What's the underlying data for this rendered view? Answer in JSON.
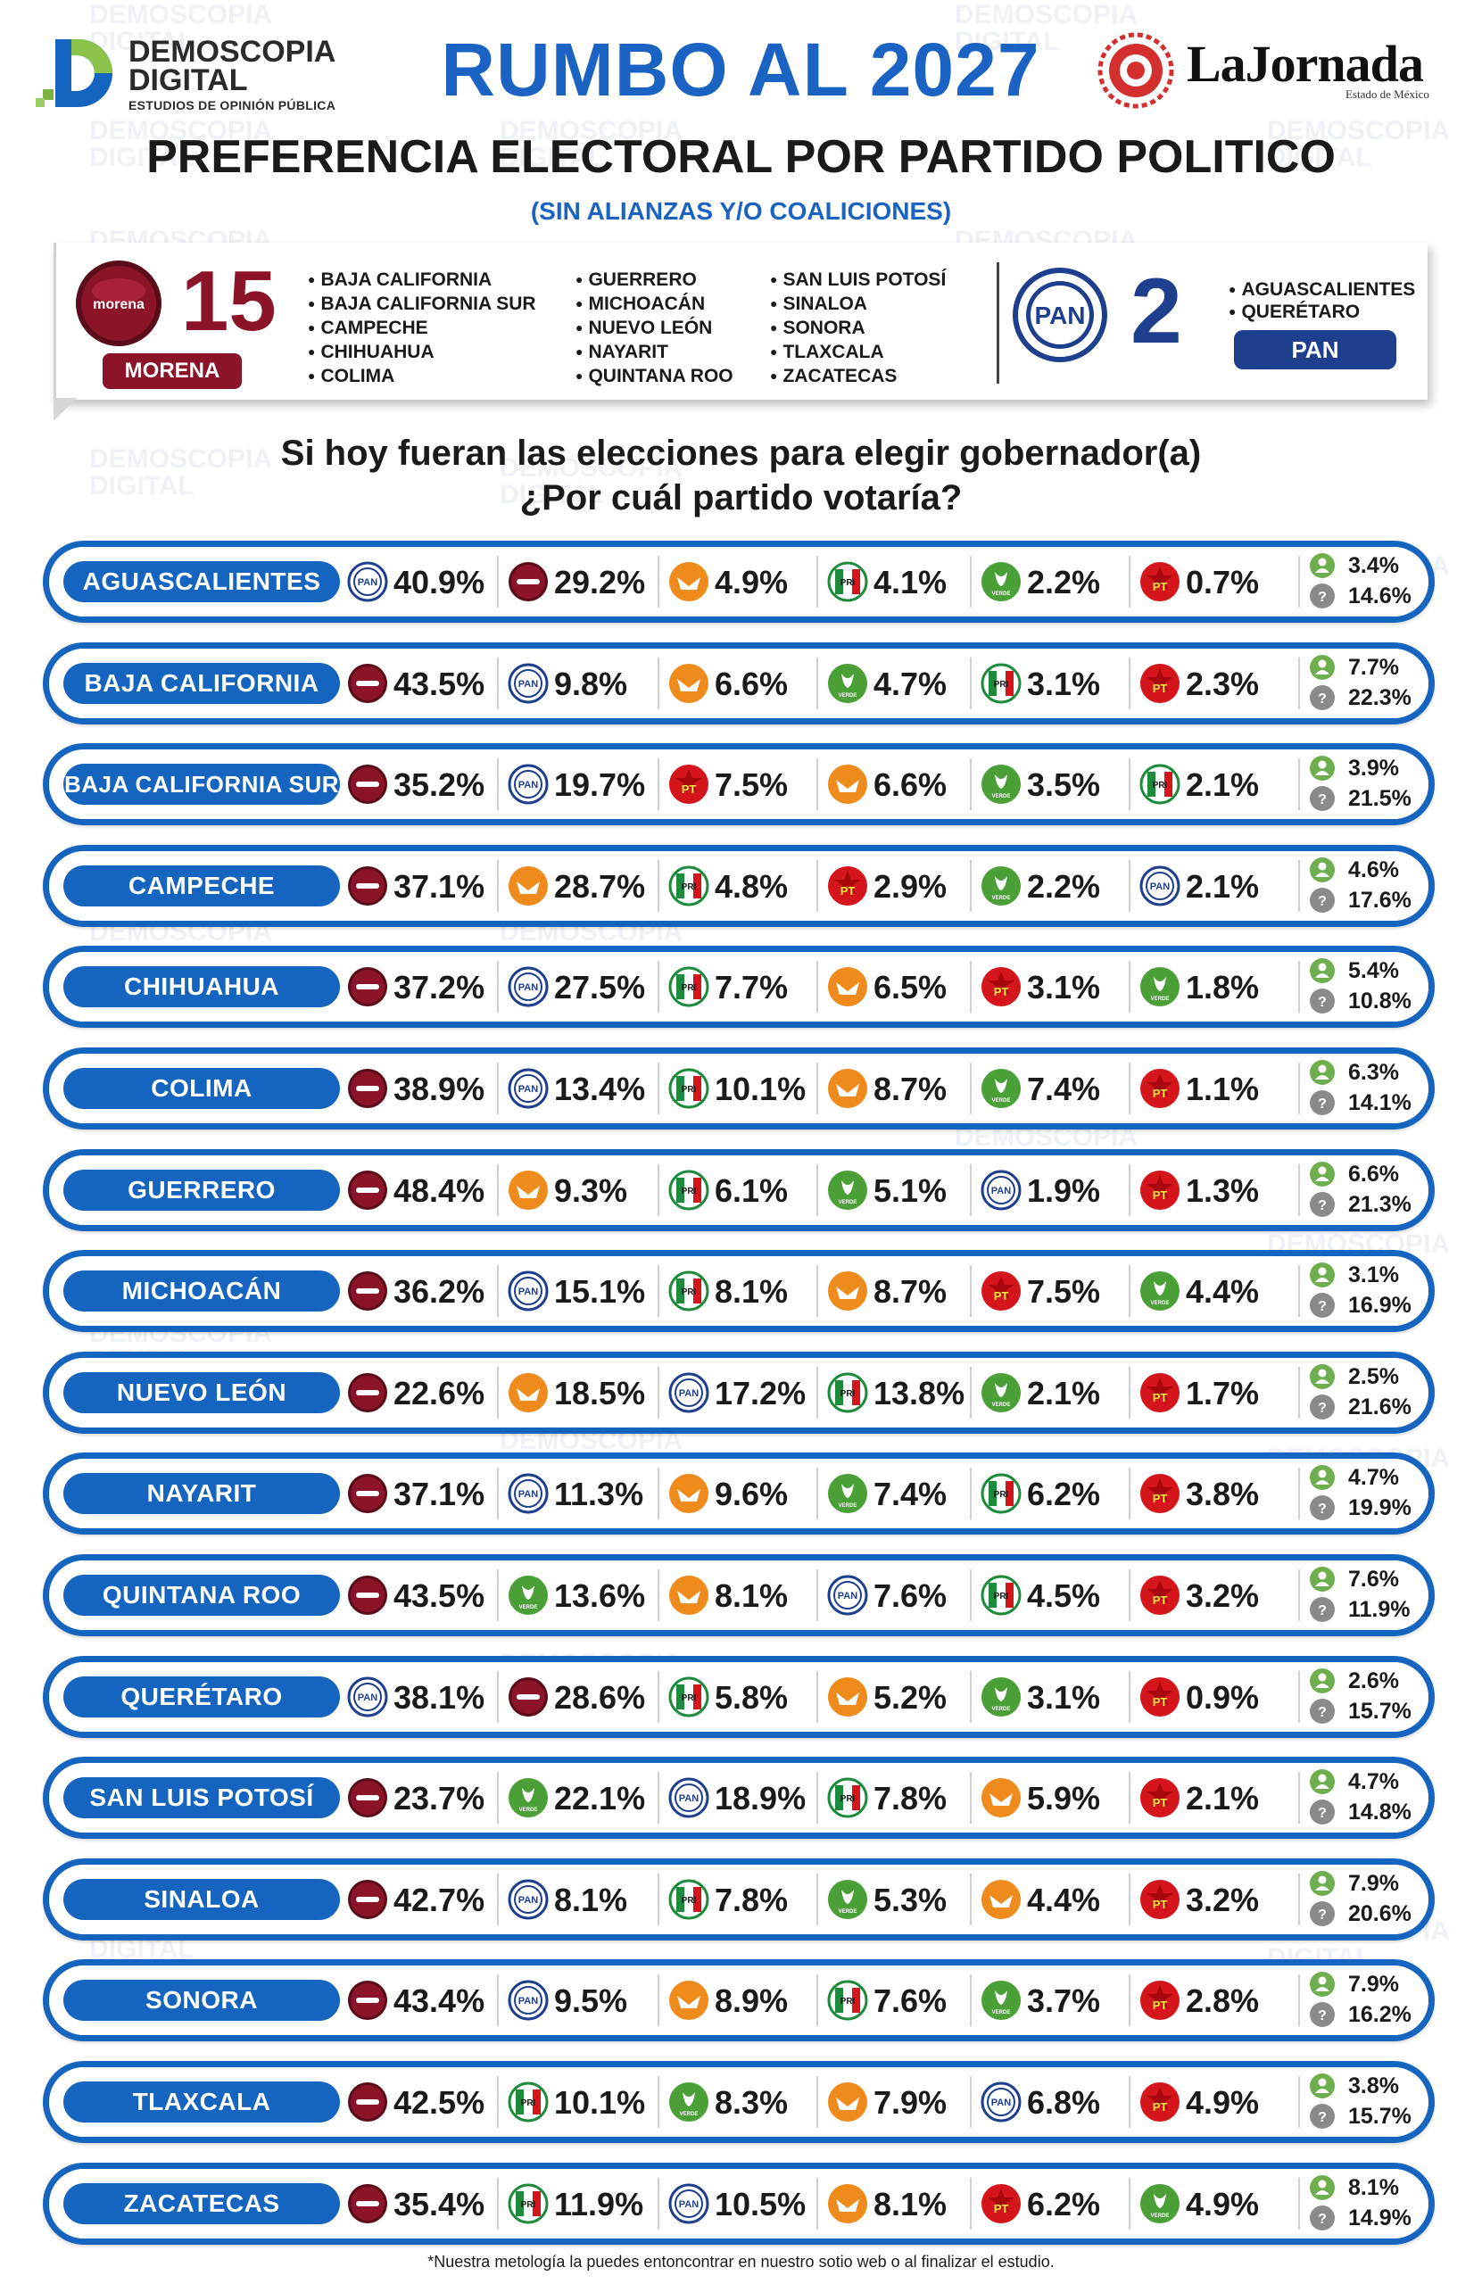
{
  "header": {
    "brand_line1": "DEMOSCOPIA",
    "brand_line2": "DIGITAL",
    "brand_tagline": "ESTUDIOS DE OPINIÓN PÚBLICA",
    "title": "RUMBO AL 2027",
    "partner": "LaJornada",
    "partner_sub": "Estado de México",
    "subtitle": "PREFERENCIA ELECTORAL POR PARTIDO POLITICO",
    "subtitle2": "(SIN ALIANZAS Y/O COALICIONES)"
  },
  "watermark": {
    "line1": "DEMOSCOPIA",
    "line2": "DIGITAL"
  },
  "summary": {
    "morena": {
      "logo_text": "morena",
      "count": "15",
      "label": "MORENA",
      "states_col1": [
        "BAJA CALIFORNIA",
        "BAJA CALIFORNIA SUR",
        "CAMPECHE",
        "CHIHUAHUA",
        "COLIMA"
      ],
      "states_col2": [
        "GUERRERO",
        "MICHOACÁN",
        "NUEVO LEÓN",
        "NAYARIT",
        "QUINTANA ROO"
      ],
      "states_col3": [
        "SAN LUIS POTOSÍ",
        "SINALOA",
        "SONORA",
        "TLAXCALA",
        "ZACATECAS"
      ]
    },
    "pan": {
      "logo_text": "PAN",
      "count": "2",
      "label": "PAN",
      "states": [
        "AGUASCALIENTES",
        "QUERÉTARO"
      ]
    }
  },
  "question": {
    "line1": "Si hoy fueran las elecciones para elegir gobernador(a)",
    "line2": "¿Por cuál partido votaría?"
  },
  "party_colors": {
    "morena": "#8b1428",
    "pan": "#1e3f8e",
    "mc": "#ef8a1c",
    "pri": "#1e8a3c",
    "pvem": "#4aa036",
    "pt": "#d4151c",
    "otro": "#6fae4e",
    "ns": "#8a8a8a",
    "row_accent": "#1565c0"
  },
  "party_icon_text": {
    "pan": "PAN",
    "pt": "PT",
    "pri": "PRI",
    "pvem": "VERDE"
  },
  "chart_data": {
    "type": "table",
    "title": "PREFERENCIA ELECTORAL POR PARTIDO POLITICO",
    "legend_extra": [
      "otro",
      "no sabe"
    ],
    "rows": [
      {
        "state": "AGUASCALIENTES",
        "parties": [
          [
            "pan",
            "40.9%"
          ],
          [
            "morena",
            "29.2%"
          ],
          [
            "mc",
            "4.9%"
          ],
          [
            "pri",
            "4.1%"
          ],
          [
            "pvem",
            "2.2%"
          ],
          [
            "pt",
            "0.7%"
          ]
        ],
        "otro": "3.4%",
        "ns": "14.6%"
      },
      {
        "state": "BAJA CALIFORNIA",
        "parties": [
          [
            "morena",
            "43.5%"
          ],
          [
            "pan",
            "9.8%"
          ],
          [
            "mc",
            "6.6%"
          ],
          [
            "pvem",
            "4.7%"
          ],
          [
            "pri",
            "3.1%"
          ],
          [
            "pt",
            "2.3%"
          ]
        ],
        "otro": "7.7%",
        "ns": "22.3%"
      },
      {
        "state": "BAJA CALIFORNIA SUR",
        "parties": [
          [
            "morena",
            "35.2%"
          ],
          [
            "pan",
            "19.7%"
          ],
          [
            "pt",
            "7.5%"
          ],
          [
            "mc",
            "6.6%"
          ],
          [
            "pvem",
            "3.5%"
          ],
          [
            "pri",
            "2.1%"
          ]
        ],
        "otro": "3.9%",
        "ns": "21.5%"
      },
      {
        "state": "CAMPECHE",
        "parties": [
          [
            "morena",
            "37.1%"
          ],
          [
            "mc",
            "28.7%"
          ],
          [
            "pri",
            "4.8%"
          ],
          [
            "pt",
            "2.9%"
          ],
          [
            "pvem",
            "2.2%"
          ],
          [
            "pan",
            "2.1%"
          ]
        ],
        "otro": "4.6%",
        "ns": "17.6%"
      },
      {
        "state": "CHIHUAHUA",
        "parties": [
          [
            "morena",
            "37.2%"
          ],
          [
            "pan",
            "27.5%"
          ],
          [
            "pri",
            "7.7%"
          ],
          [
            "mc",
            "6.5%"
          ],
          [
            "pt",
            "3.1%"
          ],
          [
            "pvem",
            "1.8%"
          ]
        ],
        "otro": "5.4%",
        "ns": "10.8%"
      },
      {
        "state": "COLIMA",
        "parties": [
          [
            "morena",
            "38.9%"
          ],
          [
            "pan",
            "13.4%"
          ],
          [
            "pri",
            "10.1%"
          ],
          [
            "mc",
            "8.7%"
          ],
          [
            "pvem",
            "7.4%"
          ],
          [
            "pt",
            "1.1%"
          ]
        ],
        "otro": "6.3%",
        "ns": "14.1%"
      },
      {
        "state": "GUERRERO",
        "parties": [
          [
            "morena",
            "48.4%"
          ],
          [
            "mc",
            "9.3%"
          ],
          [
            "pri",
            "6.1%"
          ],
          [
            "pvem",
            "5.1%"
          ],
          [
            "pan",
            "1.9%"
          ],
          [
            "pt",
            "1.3%"
          ]
        ],
        "otro": "6.6%",
        "ns": "21.3%"
      },
      {
        "state": "MICHOACÁN",
        "parties": [
          [
            "morena",
            "36.2%"
          ],
          [
            "pan",
            "15.1%"
          ],
          [
            "pri",
            "8.1%"
          ],
          [
            "mc",
            "8.7%"
          ],
          [
            "pt",
            "7.5%"
          ],
          [
            "pvem",
            "4.4%"
          ]
        ],
        "otro": "3.1%",
        "ns": "16.9%"
      },
      {
        "state": "NUEVO LEÓN",
        "parties": [
          [
            "morena",
            "22.6%"
          ],
          [
            "mc",
            "18.5%"
          ],
          [
            "pan",
            "17.2%"
          ],
          [
            "pri",
            "13.8%"
          ],
          [
            "pvem",
            "2.1%"
          ],
          [
            "pt",
            "1.7%"
          ]
        ],
        "otro": "2.5%",
        "ns": "21.6%"
      },
      {
        "state": "NAYARIT",
        "parties": [
          [
            "morena",
            "37.1%"
          ],
          [
            "pan",
            "11.3%"
          ],
          [
            "mc",
            "9.6%"
          ],
          [
            "pvem",
            "7.4%"
          ],
          [
            "pri",
            "6.2%"
          ],
          [
            "pt",
            "3.8%"
          ]
        ],
        "otro": "4.7%",
        "ns": "19.9%"
      },
      {
        "state": "QUINTANA ROO",
        "parties": [
          [
            "morena",
            "43.5%"
          ],
          [
            "pvem",
            "13.6%"
          ],
          [
            "mc",
            "8.1%"
          ],
          [
            "pan",
            "7.6%"
          ],
          [
            "pri",
            "4.5%"
          ],
          [
            "pt",
            "3.2%"
          ]
        ],
        "otro": "7.6%",
        "ns": "11.9%"
      },
      {
        "state": "QUERÉTARO",
        "parties": [
          [
            "pan",
            "38.1%"
          ],
          [
            "morena",
            "28.6%"
          ],
          [
            "pri",
            "5.8%"
          ],
          [
            "mc",
            "5.2%"
          ],
          [
            "pvem",
            "3.1%"
          ],
          [
            "pt",
            "0.9%"
          ]
        ],
        "otro": "2.6%",
        "ns": "15.7%"
      },
      {
        "state": "SAN LUIS POTOSÍ",
        "parties": [
          [
            "morena",
            "23.7%"
          ],
          [
            "pvem",
            "22.1%"
          ],
          [
            "pan",
            "18.9%"
          ],
          [
            "pri",
            "7.8%"
          ],
          [
            "mc",
            "5.9%"
          ],
          [
            "pt",
            "2.1%"
          ]
        ],
        "otro": "4.7%",
        "ns": "14.8%"
      },
      {
        "state": "SINALOA",
        "parties": [
          [
            "morena",
            "42.7%"
          ],
          [
            "pan",
            "8.1%"
          ],
          [
            "pri",
            "7.8%"
          ],
          [
            "pvem",
            "5.3%"
          ],
          [
            "mc",
            "4.4%"
          ],
          [
            "pt",
            "3.2%"
          ]
        ],
        "otro": "7.9%",
        "ns": "20.6%"
      },
      {
        "state": "SONORA",
        "parties": [
          [
            "morena",
            "43.4%"
          ],
          [
            "pan",
            "9.5%"
          ],
          [
            "mc",
            "8.9%"
          ],
          [
            "pri",
            "7.6%"
          ],
          [
            "pvem",
            "3.7%"
          ],
          [
            "pt",
            "2.8%"
          ]
        ],
        "otro": "7.9%",
        "ns": "16.2%"
      },
      {
        "state": "TLAXCALA",
        "parties": [
          [
            "morena",
            "42.5%"
          ],
          [
            "pri",
            "10.1%"
          ],
          [
            "pvem",
            "8.3%"
          ],
          [
            "mc",
            "7.9%"
          ],
          [
            "pan",
            "6.8%"
          ],
          [
            "pt",
            "4.9%"
          ]
        ],
        "otro": "3.8%",
        "ns": "15.7%"
      },
      {
        "state": "ZACATECAS",
        "parties": [
          [
            "morena",
            "35.4%"
          ],
          [
            "pri",
            "11.9%"
          ],
          [
            "pan",
            "10.5%"
          ],
          [
            "mc",
            "8.1%"
          ],
          [
            "pt",
            "6.2%"
          ],
          [
            "pvem",
            "4.9%"
          ]
        ],
        "otro": "8.1%",
        "ns": "14.9%"
      }
    ]
  },
  "footnote": "*Nuestra metología la puedes entoncontrar en nuestro sotio web o al finalizar el estudio."
}
